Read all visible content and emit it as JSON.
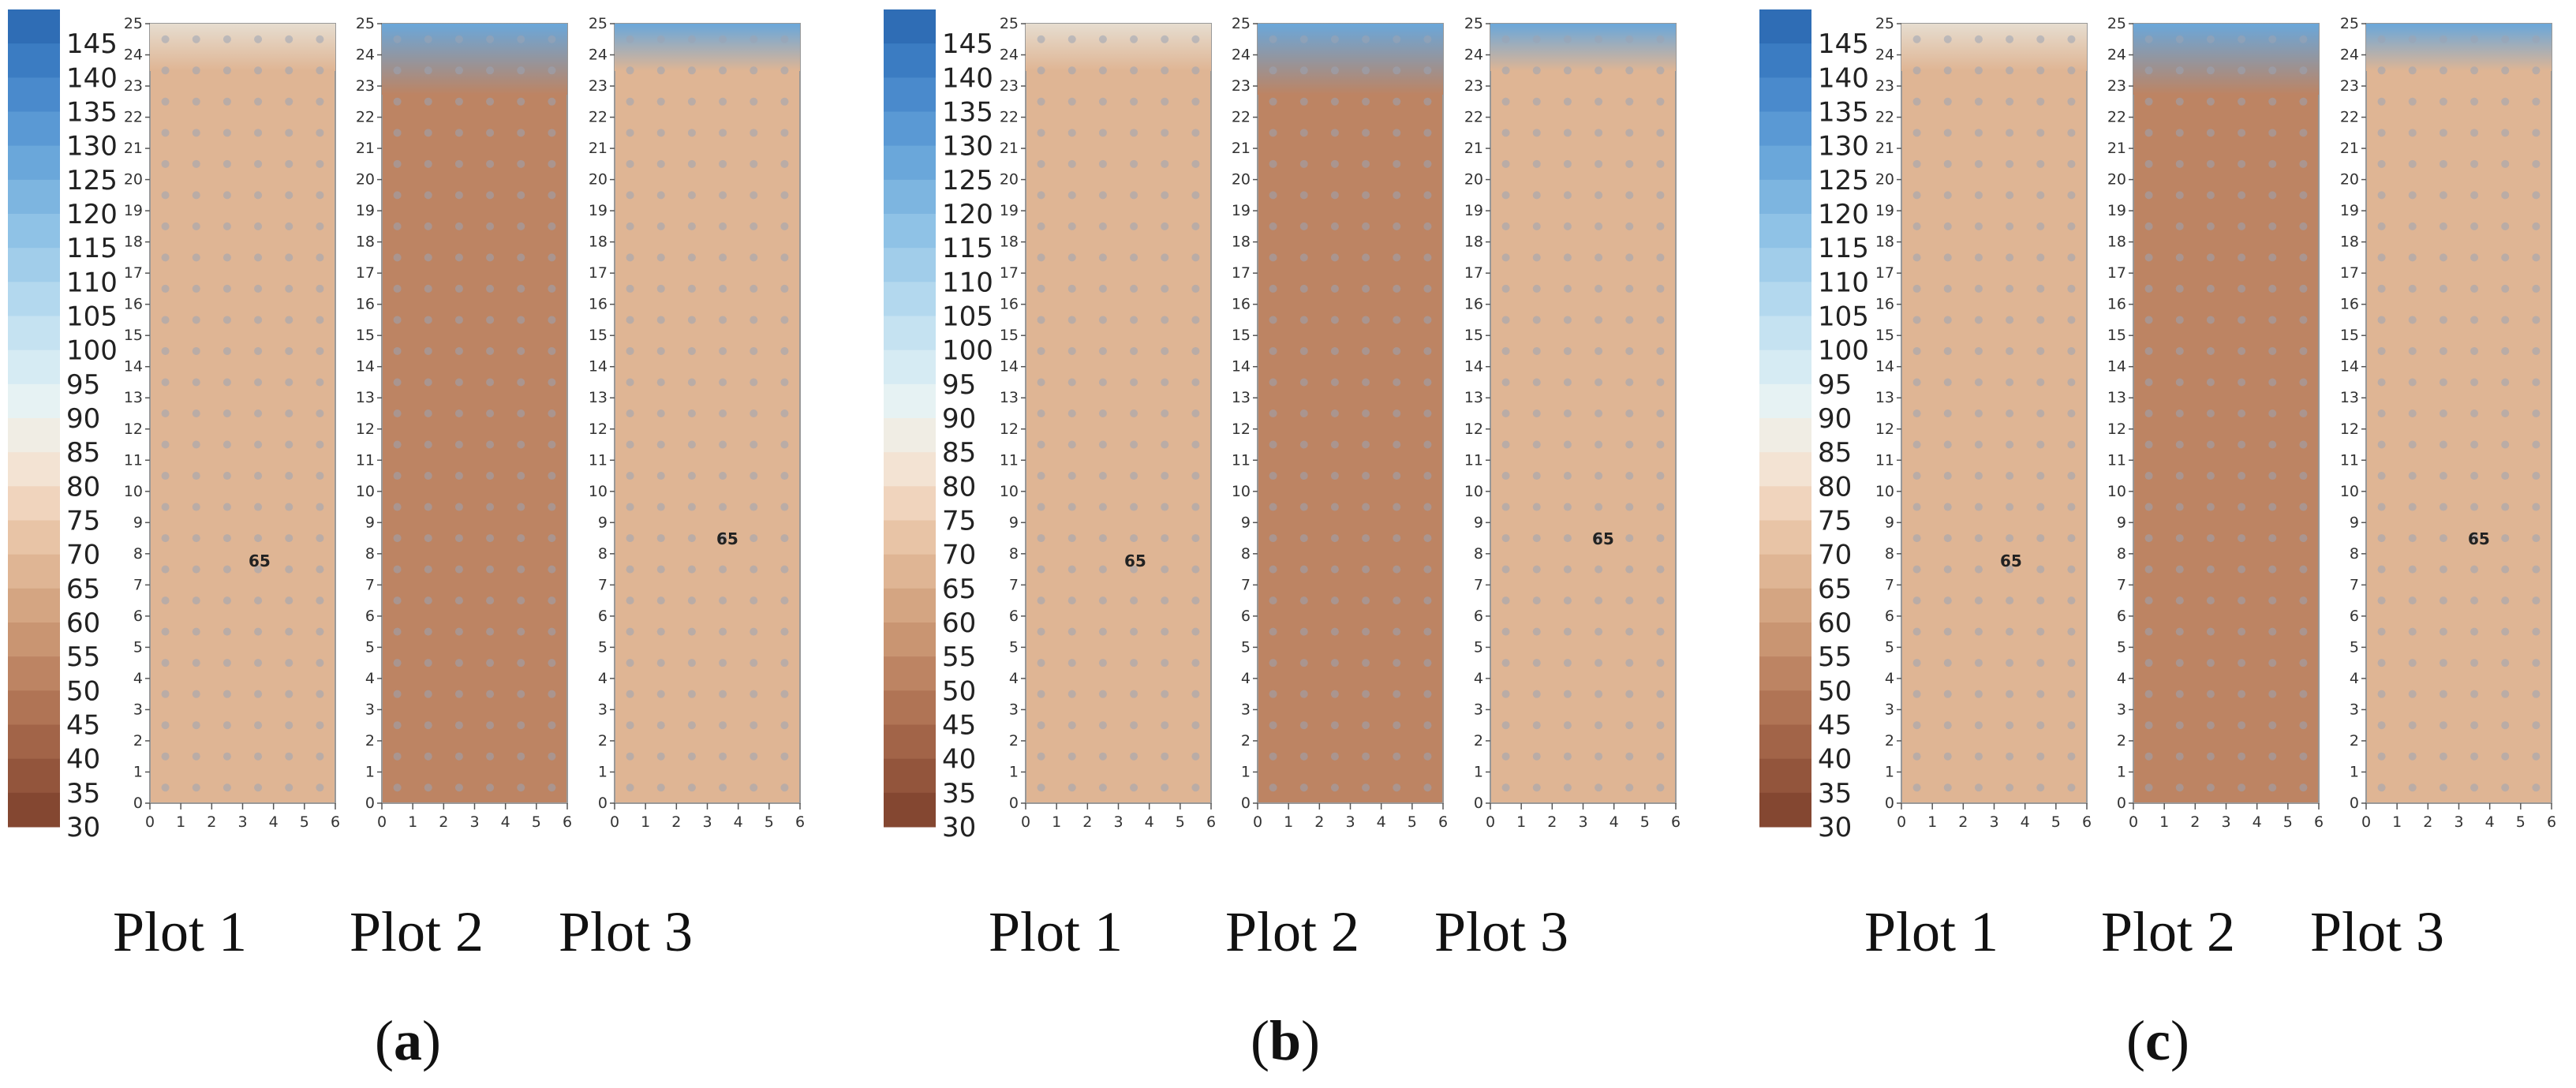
{
  "chart_data": {
    "type": "heatmap",
    "legend": {
      "levels": [
        145,
        140,
        135,
        130,
        125,
        120,
        115,
        110,
        105,
        100,
        95,
        90,
        85,
        80,
        75,
        70,
        65,
        60,
        55,
        50,
        45,
        40,
        35,
        30
      ],
      "colors": [
        "#2f6db5",
        "#3b7cc2",
        "#4a8acc",
        "#5a99d4",
        "#6aa7da",
        "#7db5e0",
        "#8fc2e6",
        "#a1cdea",
        "#b3d8ee",
        "#c5e2f1",
        "#d6ebf3",
        "#e6f2f3",
        "#f0ede4",
        "#f3e3d3",
        "#f0d4bd",
        "#e8c4a6",
        "#dfb594",
        "#d4a582",
        "#c99572",
        "#bd8463",
        "#b07455",
        "#a26448",
        "#93553c",
        "#844731"
      ]
    },
    "x_ticks": [
      "0",
      "1",
      "2",
      "3",
      "4",
      "5",
      "6"
    ],
    "y_ticks": [
      "0",
      "1",
      "2",
      "3",
      "4",
      "5",
      "6",
      "7",
      "8",
      "9",
      "10",
      "11",
      "12",
      "13",
      "14",
      "15",
      "16",
      "17",
      "18",
      "19",
      "20",
      "21",
      "22",
      "23",
      "24",
      "25"
    ],
    "contour_label": "65",
    "plots": [
      "Plot 1",
      "Plot 2",
      "Plot 3"
    ],
    "panels": [
      {
        "label": "a",
        "plot_names": [
          "Plot 1",
          "Plot 2",
          "Plot 3"
        ]
      },
      {
        "label": "b",
        "plot_names": [
          "Plot 1",
          "Plot 2",
          "Plot 3"
        ]
      },
      {
        "label": "c",
        "plot_names": [
          "Plot 1",
          "Plot 2",
          "Plot 3"
        ]
      }
    ]
  }
}
